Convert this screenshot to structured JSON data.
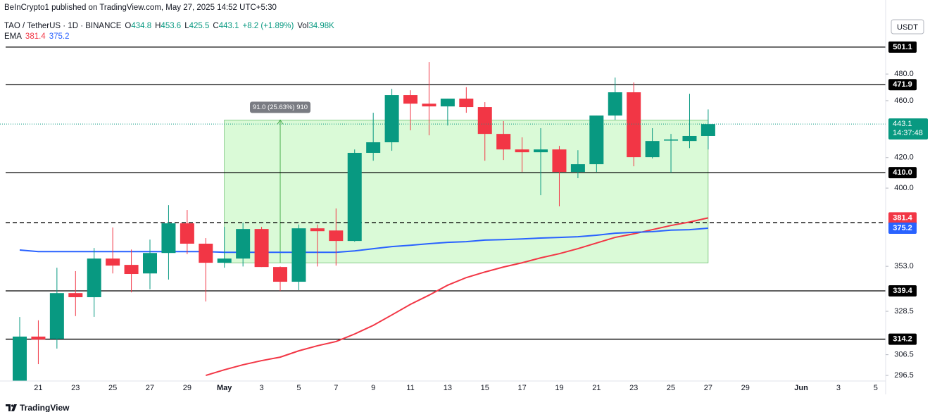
{
  "header": {
    "published": "BeInCrypto1 published on TradingView.com, May 27, 2025 14:52 UTC+5:30",
    "footer": "TradingView"
  },
  "chart_data": {
    "type": "candlestick",
    "symbol": "TAO / TetherUS · 1D · BINANCE",
    "ohlc_labels": [
      "O",
      "H",
      "L",
      "C"
    ],
    "change": "+8.2 (+1.89%)",
    "volume_label": "Vol",
    "volume": "34.98K",
    "ema_label": "EMA",
    "currency": "USDT",
    "countdown": "14:37:48",
    "log_scale": true,
    "grid": false,
    "up_color": "#089981",
    "down_color": "#f23645",
    "categories": [
      null,
      "21",
      null,
      "23",
      null,
      "25",
      null,
      "27",
      null,
      "29",
      null,
      "May",
      null,
      "3",
      null,
      "5",
      null,
      "7",
      null,
      "9",
      null,
      "11",
      null,
      "13",
      null,
      "15",
      null,
      "17",
      null,
      "19",
      null,
      "21",
      null,
      "23",
      null,
      "25",
      null,
      "27",
      null,
      "29",
      null,
      null,
      "Jun",
      null,
      "3",
      null,
      "5"
    ],
    "open": [
      293,
      315.5,
      314.4,
      338.2,
      336,
      357.4,
      353.8,
      349,
      360.6,
      378.1,
      366,
      355,
      357.4,
      374.7,
      352.6,
      344.4,
      375.1,
      373.8,
      367.6,
      423.2,
      430.4,
      464.1,
      457.8,
      455.8,
      461.5,
      455.3,
      436.2,
      425.5,
      423.6,
      425.5,
      410.5,
      415.6,
      449.2,
      466.2,
      420.3,
      431.9,
      431.3,
      434.8,
      null,
      null,
      null,
      null,
      null,
      null,
      null,
      null,
      null
    ],
    "high": [
      325.5,
      323.8,
      352.2,
      350.3,
      363.5,
      375.6,
      362.6,
      368.4,
      389.3,
      386.3,
      369.3,
      376,
      378.5,
      376,
      352.9,
      377.4,
      377.4,
      387.2,
      425.5,
      451.2,
      468.8,
      467.7,
      489.3,
      461.5,
      470,
      458.9,
      445.2,
      433.8,
      440.2,
      427.9,
      425,
      449.2,
      477.3,
      473.6,
      440.2,
      436.2,
      465.1,
      453.6,
      null,
      null,
      null,
      null,
      null,
      null,
      null,
      null,
      null
    ],
    "low": [
      290,
      301.9,
      309.5,
      326,
      325.6,
      349,
      338.6,
      340.3,
      345.6,
      359.9,
      333.7,
      352.2,
      352.9,
      352.6,
      339.4,
      339.8,
      352.9,
      353.4,
      367.2,
      417.9,
      424.6,
      438.7,
      435.2,
      442.1,
      451.2,
      417.9,
      418.4,
      410.5,
      395.5,
      388.5,
      406.4,
      410.5,
      446.1,
      414.2,
      419.4,
      410,
      426.4,
      425.5,
      null,
      null,
      null,
      null,
      null,
      null,
      null,
      null,
      null
    ],
    "close": [
      315.5,
      314,
      338.2,
      336,
      357.4,
      353.4,
      348.7,
      360.6,
      378.1,
      366,
      355,
      357.4,
      374.7,
      352.6,
      344.4,
      375.1,
      373.4,
      367.6,
      423.2,
      430.4,
      464.1,
      457.8,
      455.8,
      461.5,
      455.3,
      436.2,
      425.5,
      423.6,
      425.5,
      410.5,
      415.6,
      449.2,
      466.2,
      420.3,
      431.3,
      432.3,
      434.8,
      443.1,
      null,
      null,
      null,
      null,
      null,
      null,
      null,
      null,
      null
    ],
    "lines": [
      {
        "color": "#f23645",
        "values": [
          null,
          null,
          null,
          null,
          null,
          null,
          null,
          null,
          null,
          null,
          296.5,
          299.2,
          301.6,
          303.6,
          305.3,
          308.4,
          310.9,
          313,
          316.8,
          321.2,
          326.6,
          332.2,
          337.1,
          342.5,
          346.7,
          349.8,
          352.6,
          355,
          357.8,
          360.2,
          363.1,
          366.4,
          369.7,
          371.8,
          374.3,
          376.8,
          378.9,
          381.4,
          null,
          null,
          null,
          null,
          null,
          null,
          null,
          null,
          null
        ]
      },
      {
        "color": "#2962ff",
        "values": [
          362.3,
          361.4,
          361.4,
          361.4,
          361.4,
          361.4,
          361.4,
          361.4,
          361.4,
          361.4,
          361.4,
          361,
          361,
          361,
          361,
          361,
          361,
          361,
          361.8,
          363.1,
          364.3,
          365.1,
          366,
          366.8,
          367.2,
          368.1,
          368.4,
          368.8,
          369.3,
          369.7,
          370.1,
          371,
          372.2,
          372.7,
          373.1,
          374,
          374.3,
          375.2,
          null,
          null,
          null,
          null,
          null,
          null,
          null,
          null,
          null
        ]
      }
    ],
    "levels": [
      {
        "value": 501.1,
        "style": "solid"
      },
      {
        "value": 471.9,
        "style": "solid"
      },
      {
        "value": 410,
        "label": "410.0",
        "style": "solid"
      },
      {
        "value": 378.5,
        "style": "dashed"
      },
      {
        "value": 339.4,
        "style": "solid"
      },
      {
        "value": 314.2,
        "style": "solid"
      }
    ],
    "measure": {
      "low": 355,
      "high": 446,
      "label": "91.0 (25.63%) 910",
      "color": "#b6f5b0"
    },
    "ylim": [
      294.2,
      540.3
    ],
    "yticks": [
      296.5,
      306.5,
      328.5,
      {
        "value": 353,
        "label": "353.0"
      },
      {
        "value": 400,
        "label": "400.0"
      },
      {
        "value": 420,
        "label": "420.0"
      },
      {
        "value": 460,
        "label": "460.0"
      },
      {
        "value": 480,
        "label": "480.0"
      }
    ]
  }
}
